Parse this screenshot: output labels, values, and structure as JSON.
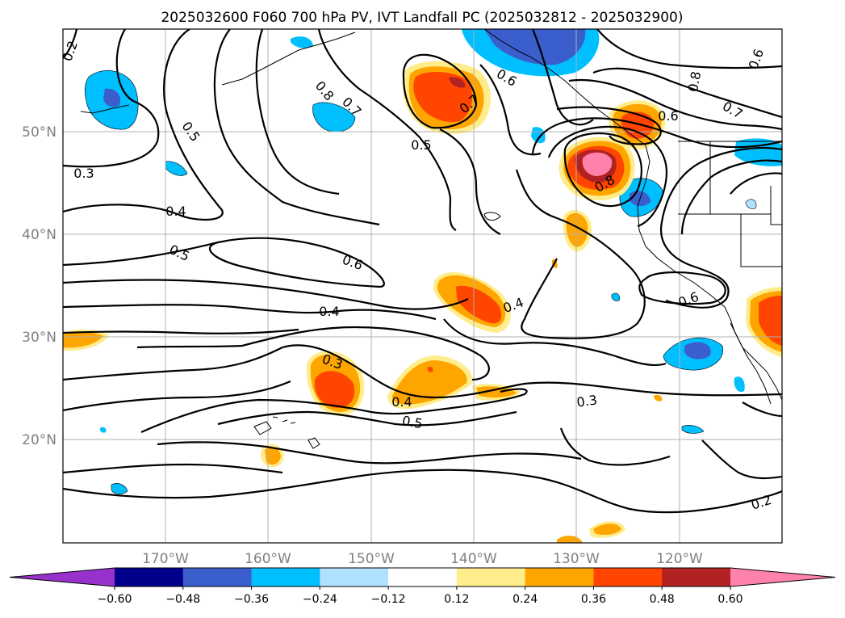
{
  "title": "2025032600 F060 700 hPa PV, IVT Landfall PC (2025032812 - 2025032900)",
  "lat_labels": [
    "50°N",
    "40°N",
    "30°N",
    "20°N"
  ],
  "lon_labels": [
    "170°W",
    "160°W",
    "150°W",
    "140°W",
    "130°W",
    "120°W"
  ],
  "colorbar": {
    "ticks": [
      "−0.60",
      "−0.48",
      "−0.36",
      "−0.24",
      "−0.12",
      "0.12",
      "0.24",
      "0.36",
      "0.48",
      "0.60"
    ],
    "colors": [
      "#9932cc",
      "#00008b",
      "#3a5fcd",
      "#00bfff",
      "#b0e2ff",
      "#ffffff",
      "#ffec8b",
      "#ffa500",
      "#ff4500",
      "#b22222",
      "#ff82ab"
    ]
  },
  "contour_labels": [
    "0.2",
    "0.3",
    "0.4",
    "0.5",
    "0.5",
    "0.8",
    "0.7",
    "0.5",
    "0.7",
    "0.6",
    "0.6",
    "0.8",
    "0.8",
    "0.6",
    "0.7",
    "0.6",
    "0.4",
    "0.4",
    "0.3",
    "0.4",
    "0.5",
    "0.3",
    "0.6",
    "0.2"
  ]
}
